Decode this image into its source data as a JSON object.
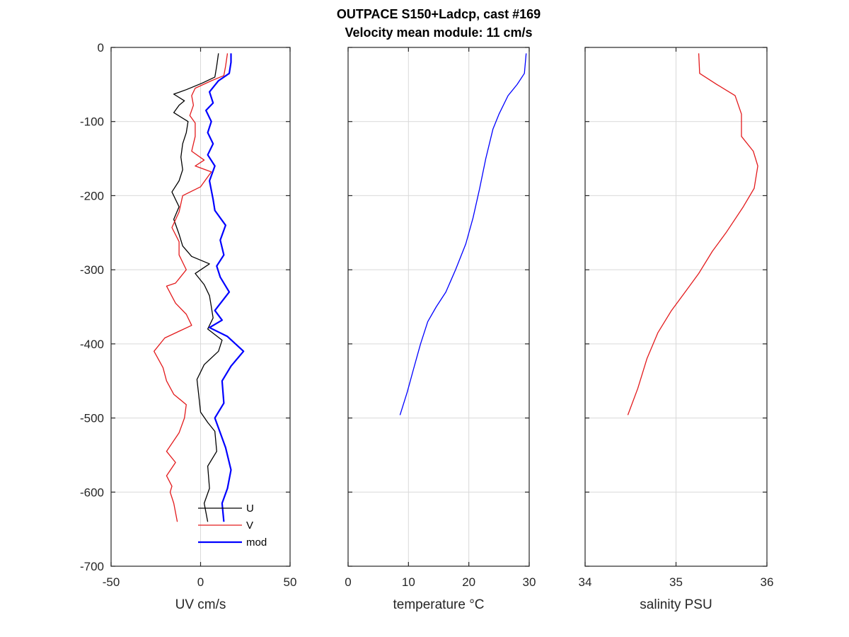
{
  "figure": {
    "title_line1": "OUTPACE S150+Ladcp, cast #169",
    "title_line2": "Velocity mean module:  11 cm/s"
  },
  "colors": {
    "U": "#000000",
    "V": "#e31a1c",
    "mod": "#0000ff",
    "temperature": "#0000ff",
    "salinity": "#e31a1c"
  },
  "chart_data": [
    {
      "type": "line",
      "id": "uv",
      "xlabel": "UV cm/s",
      "ylabel": "",
      "xlim": [
        -50,
        50
      ],
      "ylim": [
        -700,
        0
      ],
      "xticks": [
        -50,
        0,
        50
      ],
      "yticks": [
        0,
        -100,
        -200,
        -300,
        -400,
        -500,
        -600,
        -700
      ],
      "grid": true,
      "legend": {
        "placement": "bottom-right",
        "entries": [
          "U",
          "V",
          "mod"
        ]
      },
      "series": [
        {
          "name": "U",
          "color": "#000000",
          "width": 1.3,
          "points": [
            [
              10,
              -8
            ],
            [
              9,
              -25
            ],
            [
              8,
              -40
            ],
            [
              1,
              -48
            ],
            [
              -8,
              -57
            ],
            [
              -15,
              -63
            ],
            [
              -9,
              -72
            ],
            [
              -12,
              -78
            ],
            [
              -15,
              -88
            ],
            [
              -7,
              -100
            ],
            [
              -8,
              -115
            ],
            [
              -10,
              -130
            ],
            [
              -11,
              -148
            ],
            [
              -10,
              -165
            ],
            [
              -12,
              -180
            ],
            [
              -16,
              -195
            ],
            [
              -12,
              -215
            ],
            [
              -15,
              -232
            ],
            [
              -12,
              -252
            ],
            [
              -10,
              -268
            ],
            [
              -5,
              -282
            ],
            [
              5,
              -292
            ],
            [
              -3,
              -305
            ],
            [
              2,
              -320
            ],
            [
              5,
              -335
            ],
            [
              6,
              -350
            ],
            [
              7,
              -365
            ],
            [
              4,
              -380
            ],
            [
              12,
              -395
            ],
            [
              10,
              -410
            ],
            [
              2,
              -428
            ],
            [
              -2,
              -448
            ],
            [
              -1,
              -470
            ],
            [
              0,
              -492
            ],
            [
              4,
              -506
            ],
            [
              8,
              -518
            ],
            [
              9,
              -545
            ],
            [
              4,
              -565
            ],
            [
              5,
              -595
            ],
            [
              2,
              -615
            ],
            [
              4,
              -640
            ]
          ]
        },
        {
          "name": "V",
          "color": "#e31a1c",
          "width": 1.3,
          "points": [
            [
              15,
              -8
            ],
            [
              14,
              -25
            ],
            [
              13,
              -38
            ],
            [
              6,
              -45
            ],
            [
              -3,
              -55
            ],
            [
              -5,
              -65
            ],
            [
              -4,
              -78
            ],
            [
              -6,
              -92
            ],
            [
              -3,
              -102
            ],
            [
              -3,
              -120
            ],
            [
              -5,
              -140
            ],
            [
              2,
              -152
            ],
            [
              -3,
              -160
            ],
            [
              6,
              -168
            ],
            [
              0,
              -188
            ],
            [
              -10,
              -200
            ],
            [
              -12,
              -222
            ],
            [
              -16,
              -243
            ],
            [
              -12,
              -262
            ],
            [
              -12,
              -280
            ],
            [
              -8,
              -300
            ],
            [
              -14,
              -318
            ],
            [
              -19,
              -322
            ],
            [
              -14,
              -345
            ],
            [
              -8,
              -360
            ],
            [
              -5,
              -375
            ],
            [
              -20,
              -392
            ],
            [
              -26,
              -410
            ],
            [
              -21,
              -432
            ],
            [
              -19,
              -450
            ],
            [
              -15,
              -468
            ],
            [
              -8,
              -482
            ],
            [
              -9,
              -500
            ],
            [
              -12,
              -520
            ],
            [
              -19,
              -545
            ],
            [
              -14,
              -560
            ],
            [
              -19,
              -578
            ],
            [
              -16,
              -592
            ],
            [
              -17,
              -600
            ],
            [
              -15,
              -615
            ],
            [
              -13,
              -640
            ]
          ]
        },
        {
          "name": "mod",
          "color": "#0000ff",
          "width": 2.2,
          "points": [
            [
              17,
              -8
            ],
            [
              17,
              -20
            ],
            [
              16,
              -35
            ],
            [
              10,
              -45
            ],
            [
              5,
              -60
            ],
            [
              7,
              -75
            ],
            [
              3,
              -85
            ],
            [
              6,
              -100
            ],
            [
              4,
              -115
            ],
            [
              7,
              -130
            ],
            [
              4,
              -145
            ],
            [
              8,
              -160
            ],
            [
              5,
              -180
            ],
            [
              7,
              -205
            ],
            [
              8,
              -220
            ],
            [
              14,
              -240
            ],
            [
              11,
              -260
            ],
            [
              13,
              -280
            ],
            [
              9,
              -295
            ],
            [
              11,
              -310
            ],
            [
              16,
              -330
            ],
            [
              8,
              -355
            ],
            [
              12,
              -368
            ],
            [
              5,
              -378
            ],
            [
              15,
              -390
            ],
            [
              24,
              -410
            ],
            [
              17,
              -430
            ],
            [
              12,
              -450
            ],
            [
              13,
              -480
            ],
            [
              8,
              -500
            ],
            [
              11,
              -520
            ],
            [
              14,
              -540
            ],
            [
              17,
              -570
            ],
            [
              15,
              -595
            ],
            [
              12,
              -615
            ],
            [
              13,
              -640
            ]
          ]
        }
      ]
    },
    {
      "type": "line",
      "id": "temperature",
      "xlabel": "temperature °C",
      "ylabel": "",
      "xlim": [
        0,
        30
      ],
      "ylim": [
        -700,
        0
      ],
      "xticks": [
        0,
        10,
        20,
        30
      ],
      "yticks": [
        0,
        -100,
        -200,
        -300,
        -400,
        -500,
        -600,
        -700
      ],
      "grid": true,
      "series": [
        {
          "name": "temperature",
          "color": "#0000ff",
          "width": 1.3,
          "points": [
            [
              29.5,
              -8
            ],
            [
              29.2,
              -35
            ],
            [
              28,
              -50
            ],
            [
              26.5,
              -65
            ],
            [
              25,
              -90
            ],
            [
              24,
              -110
            ],
            [
              22.8,
              -150
            ],
            [
              21.8,
              -190
            ],
            [
              20.7,
              -230
            ],
            [
              19.5,
              -265
            ],
            [
              17.8,
              -300
            ],
            [
              16.2,
              -330
            ],
            [
              14.6,
              -350
            ],
            [
              13.2,
              -370
            ],
            [
              12,
              -400
            ],
            [
              10.8,
              -435
            ],
            [
              9.8,
              -465
            ],
            [
              8.6,
              -496
            ]
          ]
        }
      ]
    },
    {
      "type": "line",
      "id": "salinity",
      "xlabel": "salinity PSU",
      "ylabel": "",
      "xlim": [
        34,
        36
      ],
      "ylim": [
        -700,
        0
      ],
      "xticks": [
        34,
        35,
        36
      ],
      "yticks": [
        0,
        -100,
        -200,
        -300,
        -400,
        -500,
        -600,
        -700
      ],
      "grid": true,
      "series": [
        {
          "name": "salinity",
          "color": "#e31a1c",
          "width": 1.3,
          "points": [
            [
              35.25,
              -8
            ],
            [
              35.26,
              -35
            ],
            [
              35.45,
              -50
            ],
            [
              35.65,
              -65
            ],
            [
              35.72,
              -90
            ],
            [
              35.72,
              -120
            ],
            [
              35.85,
              -140
            ],
            [
              35.9,
              -160
            ],
            [
              35.86,
              -190
            ],
            [
              35.74,
              -215
            ],
            [
              35.55,
              -250
            ],
            [
              35.4,
              -275
            ],
            [
              35.25,
              -305
            ],
            [
              35.1,
              -330
            ],
            [
              34.95,
              -355
            ],
            [
              34.8,
              -385
            ],
            [
              34.68,
              -420
            ],
            [
              34.58,
              -460
            ],
            [
              34.47,
              -496
            ]
          ]
        }
      ]
    }
  ]
}
